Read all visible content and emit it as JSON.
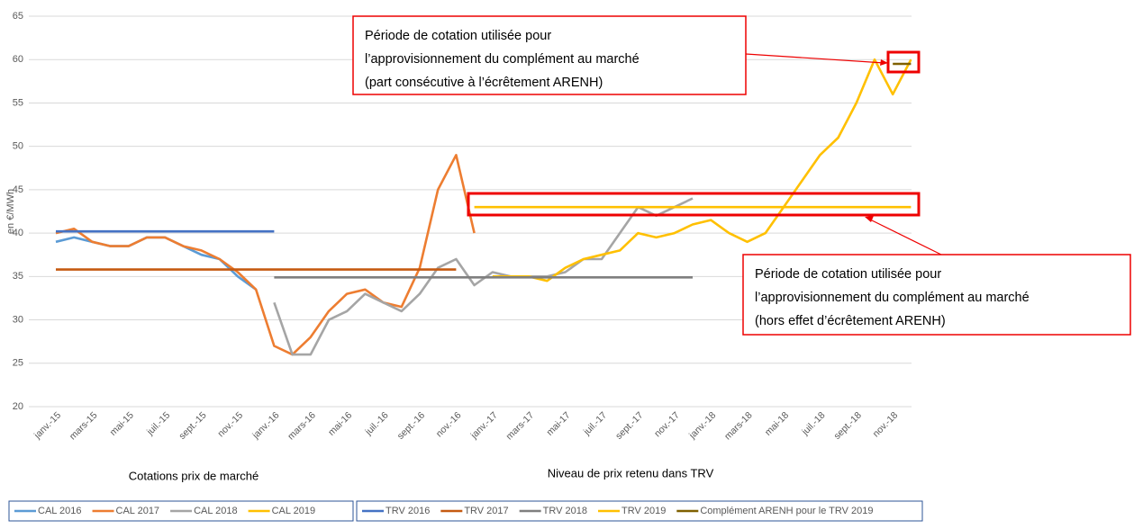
{
  "chart_data": {
    "type": "line",
    "y_label": "en €/MWh",
    "categories": [
      "janv.-15",
      null,
      "mars-15",
      null,
      "mai-15",
      null,
      "juil.-15",
      null,
      "sept.-15",
      null,
      "nov.-15",
      null,
      "janv.-16",
      null,
      "mars-16",
      null,
      "mai-16",
      null,
      "juil.-16",
      null,
      "sept.-16",
      null,
      "nov.-16",
      null,
      "janv.-17",
      null,
      "mars-17",
      null,
      "mai-17",
      null,
      "juil.-17",
      null,
      "sept.-17",
      null,
      "nov.-17",
      null,
      "janv.-18",
      null,
      "mars-18",
      null,
      "mai-18",
      null,
      "juil.-18",
      null,
      "sept.-18",
      null,
      "nov.-18",
      null
    ],
    "ylim": [
      20,
      65
    ],
    "yticks": [
      20,
      25,
      30,
      35,
      40,
      45,
      50,
      55,
      60,
      65
    ],
    "grid": true,
    "group_labels": [
      "Cotations prix de marché",
      "Niveau de prix retenu dans TRV"
    ],
    "series": [
      {
        "name": "CAL 2016",
        "color": "#5b9bd5",
        "group": 0,
        "values": [
          39,
          39.5,
          39,
          38.5,
          38.5,
          39.5,
          39.5,
          38.5,
          37.5,
          37,
          35,
          33.5,
          null,
          null,
          null,
          null,
          null,
          null,
          null,
          null,
          null,
          null,
          null,
          null,
          null,
          null,
          null,
          null,
          null,
          null,
          null,
          null,
          null,
          null,
          null,
          null,
          null,
          null,
          null,
          null,
          null,
          null,
          null,
          null,
          null,
          null,
          null,
          null
        ]
      },
      {
        "name": "CAL 2017",
        "color": "#ed7d31",
        "group": 0,
        "values": [
          40,
          40.5,
          39,
          38.5,
          38.5,
          39.5,
          39.5,
          38.5,
          38,
          37,
          35.5,
          33.5,
          27,
          26,
          28,
          31,
          33,
          33.5,
          32,
          31.5,
          36,
          45,
          49,
          40,
          null,
          null,
          null,
          null,
          null,
          null,
          null,
          null,
          null,
          null,
          null,
          null,
          null,
          null,
          null,
          null,
          null,
          null,
          null,
          null,
          null,
          null,
          null,
          null
        ]
      },
      {
        "name": "CAL 2018",
        "color": "#a5a5a5",
        "group": 0,
        "values": [
          null,
          null,
          null,
          null,
          null,
          null,
          null,
          null,
          null,
          null,
          null,
          null,
          32,
          26,
          26,
          30,
          31,
          33,
          32,
          31,
          33,
          36,
          37,
          34,
          35.5,
          35,
          35,
          35,
          35.5,
          37,
          37,
          40,
          43,
          42,
          43,
          44,
          null,
          null,
          null,
          null,
          null,
          null,
          null,
          null,
          null,
          null,
          null,
          null
        ]
      },
      {
        "name": "CAL 2019",
        "color": "#ffc000",
        "group": 0,
        "values": [
          null,
          null,
          null,
          null,
          null,
          null,
          null,
          null,
          null,
          null,
          null,
          null,
          null,
          null,
          null,
          null,
          null,
          null,
          null,
          null,
          null,
          null,
          null,
          null,
          35,
          35,
          35,
          34.5,
          36,
          37,
          37.5,
          38,
          40,
          39.5,
          40,
          41,
          41.5,
          40,
          39,
          40,
          43,
          46,
          49,
          51,
          55,
          60,
          56,
          60
        ]
      },
      {
        "name": "TRV 2016",
        "color": "#4472c4",
        "group": 1,
        "values": [
          40.2,
          40.2,
          40.2,
          40.2,
          40.2,
          40.2,
          40.2,
          40.2,
          40.2,
          40.2,
          40.2,
          40.2,
          40.2,
          null,
          null,
          null,
          null,
          null,
          null,
          null,
          null,
          null,
          null,
          null,
          null,
          null,
          null,
          null,
          null,
          null,
          null,
          null,
          null,
          null,
          null,
          null,
          null,
          null,
          null,
          null,
          null,
          null,
          null,
          null,
          null,
          null,
          null,
          null
        ]
      },
      {
        "name": "TRV 2017",
        "color": "#c55a11",
        "group": 1,
        "values": [
          35.8,
          35.8,
          35.8,
          35.8,
          35.8,
          35.8,
          35.8,
          35.8,
          35.8,
          35.8,
          35.8,
          35.8,
          35.8,
          35.8,
          35.8,
          35.8,
          35.8,
          35.8,
          35.8,
          35.8,
          35.8,
          35.8,
          35.8,
          null,
          null,
          null,
          null,
          null,
          null,
          null,
          null,
          null,
          null,
          null,
          null,
          null,
          null,
          null,
          null,
          null,
          null,
          null,
          null,
          null,
          null,
          null,
          null,
          null
        ]
      },
      {
        "name": "TRV 2018",
        "color": "#7f7f7f",
        "group": 1,
        "values": [
          null,
          null,
          null,
          null,
          null,
          null,
          null,
          null,
          null,
          null,
          null,
          null,
          34.9,
          34.9,
          34.9,
          34.9,
          34.9,
          34.9,
          34.9,
          34.9,
          34.9,
          34.9,
          34.9,
          34.9,
          34.9,
          34.9,
          34.9,
          34.9,
          34.9,
          34.9,
          34.9,
          34.9,
          34.9,
          34.9,
          34.9,
          34.9,
          null,
          null,
          null,
          null,
          null,
          null,
          null,
          null,
          null,
          null,
          null,
          null
        ]
      },
      {
        "name": "TRV 2019",
        "color": "#ffc000",
        "group": 1,
        "values": [
          null,
          null,
          null,
          null,
          null,
          null,
          null,
          null,
          null,
          null,
          null,
          null,
          null,
          null,
          null,
          null,
          null,
          null,
          null,
          null,
          null,
          null,
          null,
          43,
          43,
          43,
          43,
          43,
          43,
          43,
          43,
          43,
          43,
          43,
          43,
          43,
          43,
          43,
          43,
          43,
          43,
          43,
          43,
          43,
          43,
          43,
          43,
          43
        ]
      },
      {
        "name": "Complément ARENH pour le TRV 2019",
        "color": "#7f6000",
        "group": 1,
        "values": [
          null,
          null,
          null,
          null,
          null,
          null,
          null,
          null,
          null,
          null,
          null,
          null,
          null,
          null,
          null,
          null,
          null,
          null,
          null,
          null,
          null,
          null,
          null,
          null,
          null,
          null,
          null,
          null,
          null,
          null,
          null,
          null,
          null,
          null,
          null,
          null,
          null,
          null,
          null,
          null,
          null,
          null,
          null,
          null,
          null,
          null,
          59.5,
          59.5
        ]
      }
    ],
    "annotations": [
      {
        "lines": [
          "Période de cotation utilisée pour",
          "l’approvisionnement du complément au marché",
          "(part consécutive à l’écrêtement ARENH)"
        ]
      },
      {
        "lines": [
          "Période de cotation utilisée pour",
          "l’approvisionnement du complément au marché",
          "(hors effet d’écrêtement ARENH)"
        ]
      }
    ]
  }
}
